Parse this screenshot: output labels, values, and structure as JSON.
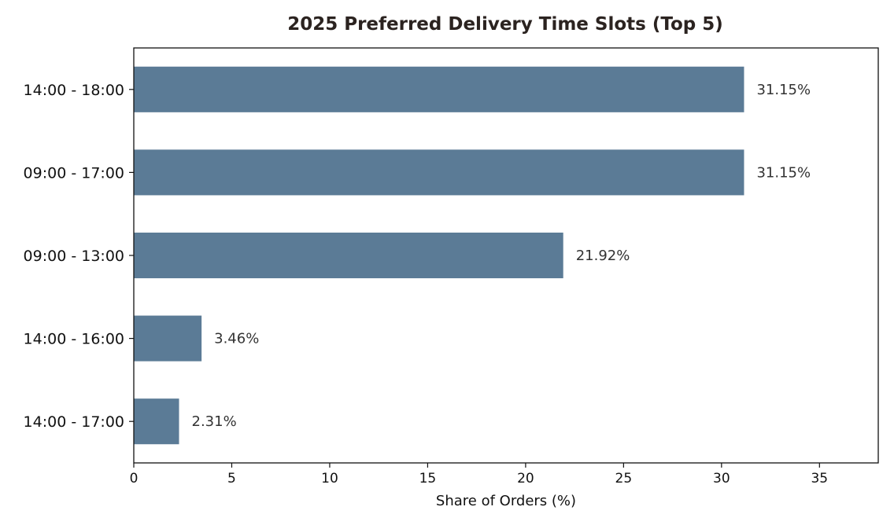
{
  "chart_data": {
    "type": "bar",
    "orientation": "horizontal",
    "title": "2025 Preferred Delivery Time Slots (Top 5)",
    "xlabel": "Share of Orders (%)",
    "ylabel": "",
    "categories": [
      "14:00 - 18:00",
      "09:00 - 17:00",
      "09:00 - 13:00",
      "14:00 - 16:00",
      "14:00 - 17:00"
    ],
    "values": [
      31.15,
      31.15,
      21.92,
      3.46,
      2.31
    ],
    "data_labels": [
      "31.15%",
      "31.15%",
      "21.92%",
      "3.46%",
      "2.31%"
    ],
    "xlim": [
      0,
      38
    ],
    "xticks": [
      0,
      5,
      10,
      15,
      20,
      25,
      30,
      35
    ],
    "grid": false,
    "colors": {
      "bar": "#5b7b96",
      "title": "#2b2320",
      "label": "#333333",
      "axis": "#111111"
    }
  }
}
